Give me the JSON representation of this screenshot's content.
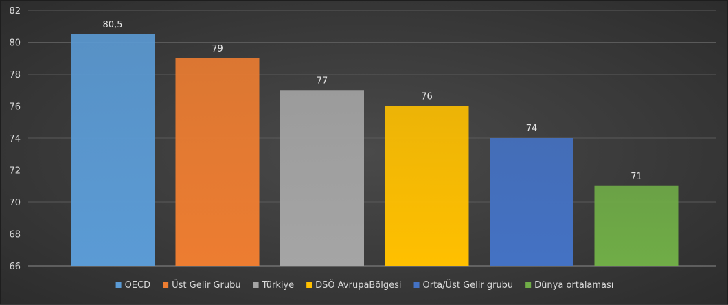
{
  "chart_data": {
    "type": "bar",
    "categories": [
      "OECD",
      "Üst Gelir Grubu",
      "Türkiye",
      "DSÖ AvrupaBölgesi",
      "Orta/Üst Gelir grubu",
      "Dünya ortalaması"
    ],
    "values": [
      80.5,
      79,
      77,
      76,
      74,
      71
    ],
    "value_labels": [
      "80,5",
      "79",
      "77",
      "76",
      "74",
      "71"
    ],
    "colors": [
      "#5b9bd5",
      "#ed7d31",
      "#a5a5a5",
      "#ffc000",
      "#4472c4",
      "#70ad47"
    ],
    "ylim": [
      66,
      82
    ],
    "yticks": [
      66,
      68,
      70,
      72,
      74,
      76,
      78,
      80,
      82
    ],
    "grid": true,
    "legend": "bottom",
    "title": "",
    "xlabel": "",
    "ylabel": ""
  }
}
